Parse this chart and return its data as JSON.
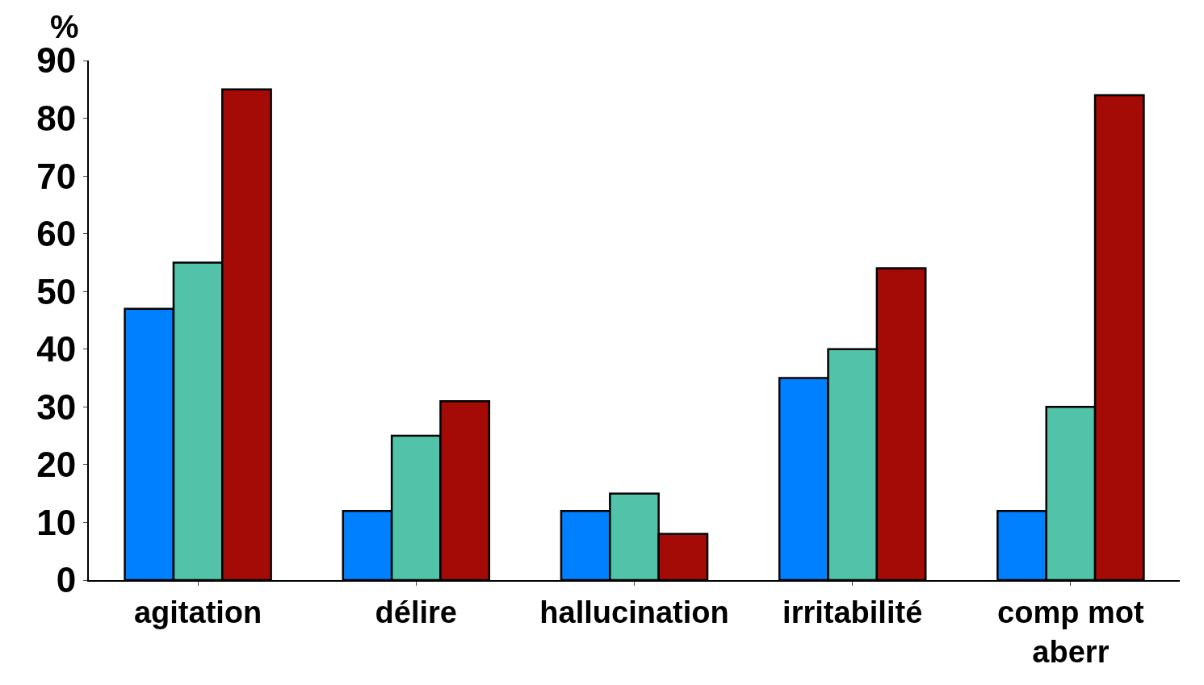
{
  "chart_data": {
    "type": "bar",
    "ylabel": "%",
    "categories": [
      "agitation",
      "délire",
      "hallucination",
      "irritabilité",
      "comp mot aberr"
    ],
    "series": [
      {
        "color": "#0080ff",
        "values": [
          47,
          12,
          12,
          35,
          12
        ]
      },
      {
        "color": "#52c3a8",
        "values": [
          55,
          25,
          15,
          40,
          30
        ]
      },
      {
        "color": "#a50b06",
        "values": [
          85,
          31,
          8,
          54,
          84
        ]
      }
    ],
    "ylim": [
      0,
      90
    ],
    "yticks": [
      0,
      10,
      20,
      30,
      40,
      50,
      60,
      70,
      80,
      90
    ],
    "legend": false
  }
}
